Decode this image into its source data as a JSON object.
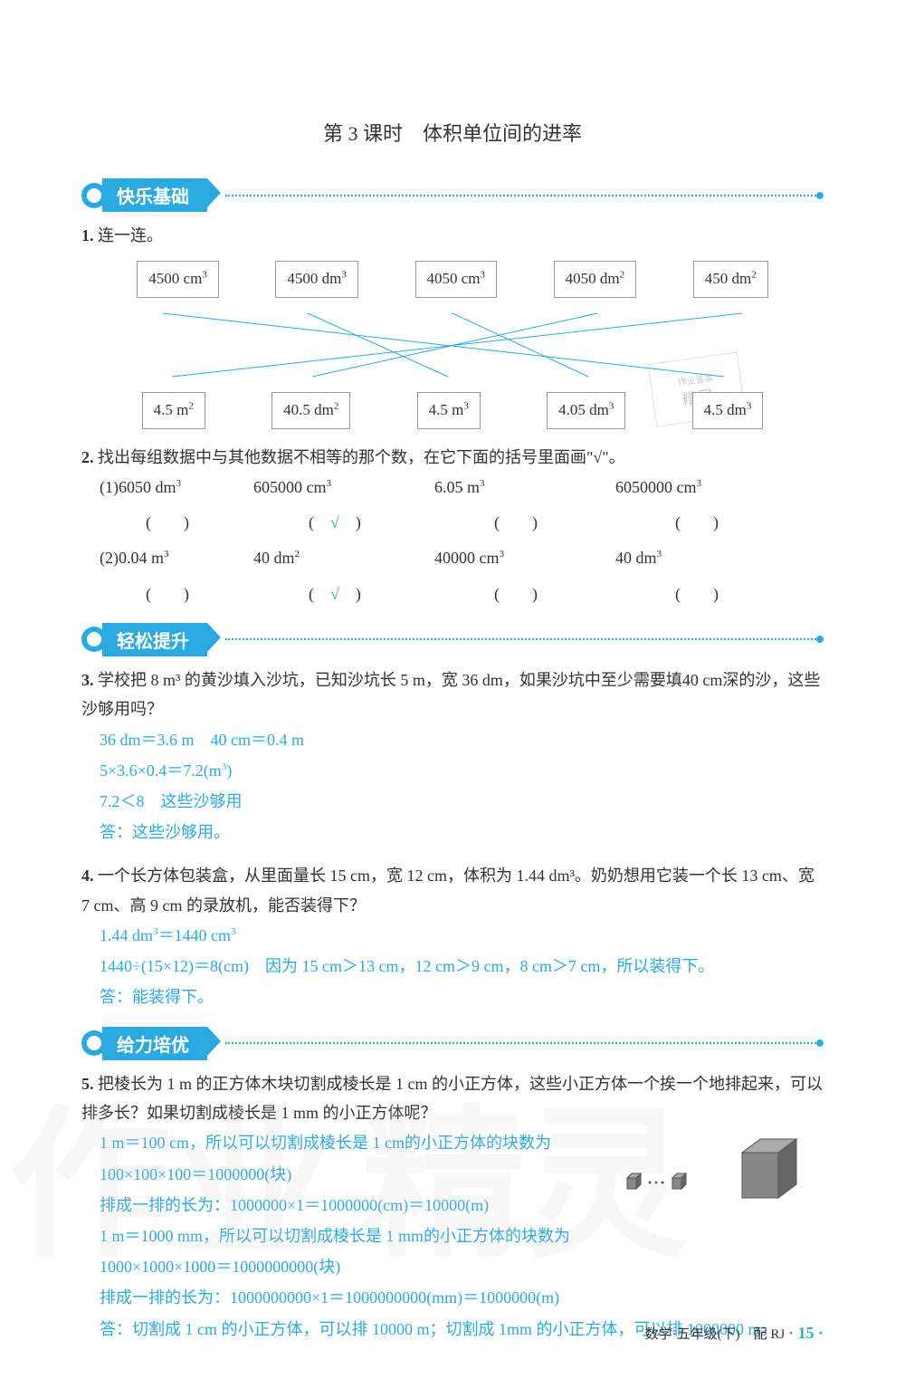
{
  "title": "第 3 课时　体积单位间的进率",
  "sections": {
    "s1": "快乐基础",
    "s2": "轻松提升",
    "s3": "给力培优"
  },
  "q1": {
    "num": "1.",
    "text": "连一连。",
    "top_boxes": [
      "4500 cm³",
      "4500 dm³",
      "4050 cm³",
      "4050 dm²",
      "450 dm²"
    ],
    "bottom_boxes": [
      "4.5 m²",
      "40.5 dm²",
      "4.5 m³",
      "4.05 dm³",
      "4.5 dm³"
    ],
    "line_color": "#29abe2"
  },
  "q2": {
    "num": "2.",
    "text": "找出每组数据中与其他数据不相等的那个数，在它下面的括号里面画\"√\"。",
    "rows": [
      {
        "label": "(1)",
        "items": [
          "6050 dm³",
          "605000 cm³",
          "6.05 m³",
          "6050000 cm³"
        ],
        "check_index": 1
      },
      {
        "label": "(2)",
        "items": [
          "0.04 m³",
          "40 dm²",
          "40000 cm³",
          "40 dm³"
        ],
        "check_index": 1
      }
    ]
  },
  "q3": {
    "num": "3.",
    "text": "学校把 8 m³ 的黄沙填入沙坑，已知沙坑长 5 m，宽 36 dm，如果沙坑中至少需要填40 cm深的沙，这些沙够用吗？",
    "answer": [
      "36 dm＝3.6 m　40 cm＝0.4 m",
      "5×3.6×0.4＝7.2(m³)",
      "7.2＜8　这些沙够用",
      "答：这些沙够用。"
    ]
  },
  "q4": {
    "num": "4.",
    "text": "一个长方体包装盒，从里面量长 15 cm，宽 12 cm，体积为 1.44 dm³。奶奶想用它装一个长 13 cm、宽 7 cm、高 9 cm 的录放机，能否装得下？",
    "answer": [
      "1.44 dm³＝1440 cm³",
      "1440÷(15×12)＝8(cm)　因为 15 cm＞13 cm，12 cm＞9 cm，8 cm＞7 cm，所以装得下。",
      "答：能装得下。"
    ]
  },
  "q5": {
    "num": "5.",
    "text": "把棱长为 1 m 的正方体木块切割成棱长是 1 cm 的小正方体，这些小正方体一个挨一个地排起来，可以排多长？如果切割成棱长是 1 mm 的小正方体呢？",
    "answer": [
      "1 m＝100 cm，所以可以切割成棱长是 1 cm的小正方体的块数为",
      "100×100×100＝1000000(块)",
      "排成一排的长为：1000000×1＝1000000(cm)＝10000(m)",
      "1 m＝1000 mm，所以可以切割成棱长是 1 mm的小正方体的块数为",
      "1000×1000×1000＝1000000000(块)",
      "排成一排的长为：1000000000×1＝1000000000(mm)＝1000000(m)",
      "答：切割成 1 cm 的小正方体，可以排 10000 m；切割成 1mm 的小正方体，可以排 1000000 m。"
    ]
  },
  "footer": {
    "text": "数学·五年级(下)　配 RJ",
    "page": "· 15 ·"
  },
  "stamp_text": "精灵"
}
